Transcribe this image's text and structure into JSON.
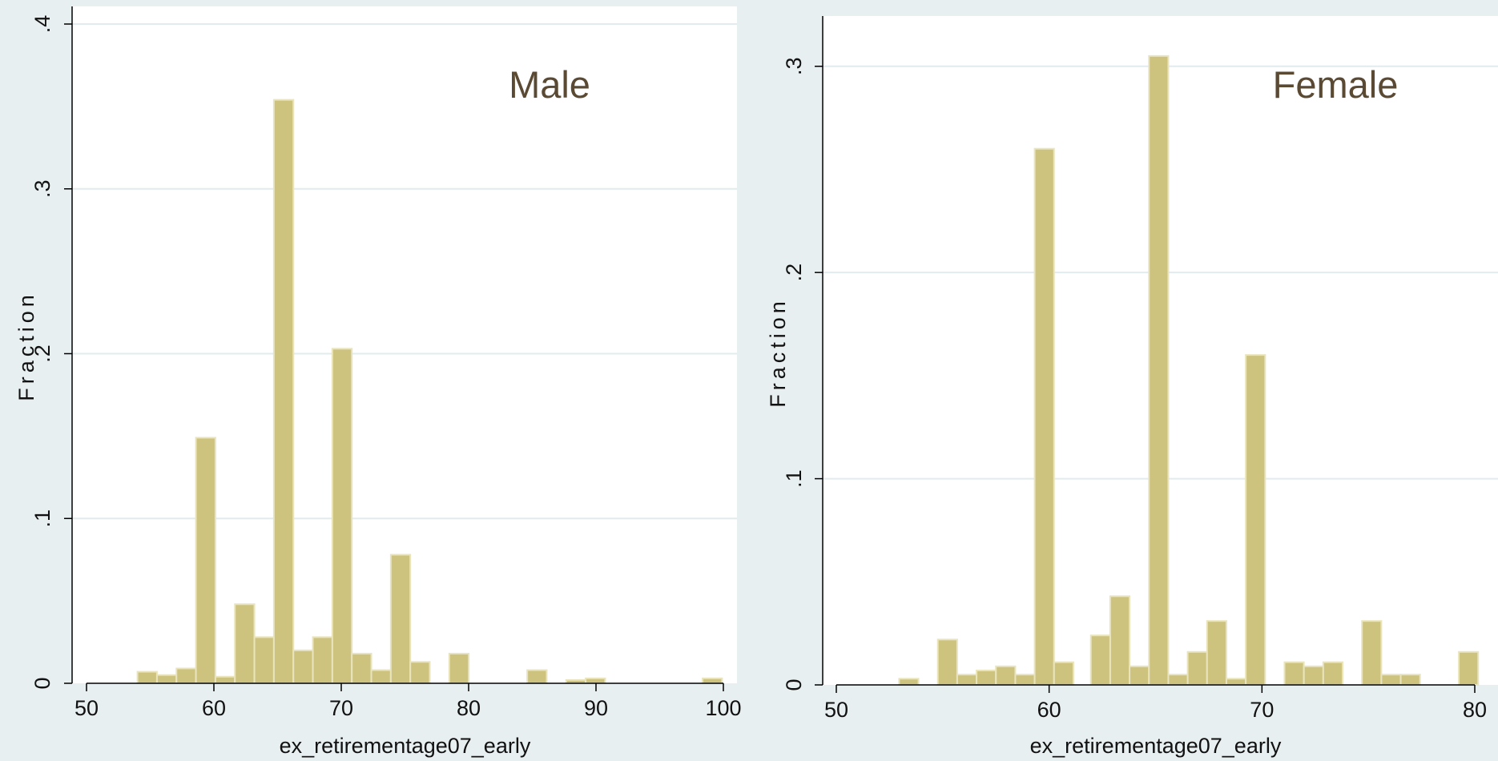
{
  "chart_data": [
    {
      "type": "bar",
      "panel_label": "Male",
      "xlabel": "ex_retirementage07_early",
      "ylabel": "Fraction",
      "xlim": [
        50,
        100
      ],
      "ylim": [
        0,
        0.4
      ],
      "xticks": [
        50,
        60,
        70,
        80,
        90,
        100
      ],
      "xtick_labels": [
        "50",
        "60",
        "70",
        "80",
        "90",
        "100"
      ],
      "yticks": [
        0,
        0.1,
        0.2,
        0.3,
        0.4
      ],
      "ytick_labels": [
        "0",
        ".1",
        ".2",
        ".3",
        ".4"
      ],
      "grid": true,
      "bin_width": 1.53,
      "bins": [
        {
          "x": 54.0,
          "value": 0.007
        },
        {
          "x": 55.53,
          "value": 0.005
        },
        {
          "x": 57.06,
          "value": 0.009
        },
        {
          "x": 58.59,
          "value": 0.149
        },
        {
          "x": 60.12,
          "value": 0.004
        },
        {
          "x": 61.65,
          "value": 0.048
        },
        {
          "x": 63.18,
          "value": 0.028
        },
        {
          "x": 64.71,
          "value": 0.354
        },
        {
          "x": 66.24,
          "value": 0.02
        },
        {
          "x": 67.77,
          "value": 0.028
        },
        {
          "x": 69.3,
          "value": 0.203
        },
        {
          "x": 70.83,
          "value": 0.018
        },
        {
          "x": 72.36,
          "value": 0.008
        },
        {
          "x": 73.89,
          "value": 0.078
        },
        {
          "x": 75.42,
          "value": 0.013
        },
        {
          "x": 78.48,
          "value": 0.018
        },
        {
          "x": 84.6,
          "value": 0.008
        },
        {
          "x": 87.66,
          "value": 0.002
        },
        {
          "x": 89.19,
          "value": 0.003
        },
        {
          "x": 98.37,
          "value": 0.003
        }
      ]
    },
    {
      "type": "bar",
      "panel_label": "Female",
      "xlabel": "ex_retirementage07_early",
      "ylabel": "Fraction",
      "xlim": [
        50,
        80
      ],
      "ylim": [
        0,
        0.31
      ],
      "xticks": [
        50,
        60,
        70,
        80
      ],
      "xtick_labels": [
        "50",
        "60",
        "70",
        "80"
      ],
      "yticks": [
        0,
        0.1,
        0.2,
        0.3
      ],
      "ytick_labels": [
        "0",
        ".1",
        ".2",
        ".3"
      ],
      "grid": true,
      "bin_width": 0.91,
      "bins": [
        {
          "x": 52.95,
          "value": 0.003
        },
        {
          "x": 54.77,
          "value": 0.022
        },
        {
          "x": 55.68,
          "value": 0.005
        },
        {
          "x": 56.59,
          "value": 0.007
        },
        {
          "x": 57.5,
          "value": 0.009
        },
        {
          "x": 58.41,
          "value": 0.005
        },
        {
          "x": 59.32,
          "value": 0.26
        },
        {
          "x": 60.23,
          "value": 0.011
        },
        {
          "x": 61.96,
          "value": 0.024
        },
        {
          "x": 62.87,
          "value": 0.043
        },
        {
          "x": 63.78,
          "value": 0.009
        },
        {
          "x": 64.69,
          "value": 0.305
        },
        {
          "x": 65.6,
          "value": 0.005
        },
        {
          "x": 66.51,
          "value": 0.016
        },
        {
          "x": 67.42,
          "value": 0.031
        },
        {
          "x": 68.33,
          "value": 0.003
        },
        {
          "x": 69.24,
          "value": 0.16
        },
        {
          "x": 71.06,
          "value": 0.011
        },
        {
          "x": 71.97,
          "value": 0.009
        },
        {
          "x": 72.88,
          "value": 0.011
        },
        {
          "x": 74.7,
          "value": 0.031
        },
        {
          "x": 75.61,
          "value": 0.005
        },
        {
          "x": 76.52,
          "value": 0.005
        },
        {
          "x": 79.25,
          "value": 0.016
        }
      ]
    }
  ]
}
